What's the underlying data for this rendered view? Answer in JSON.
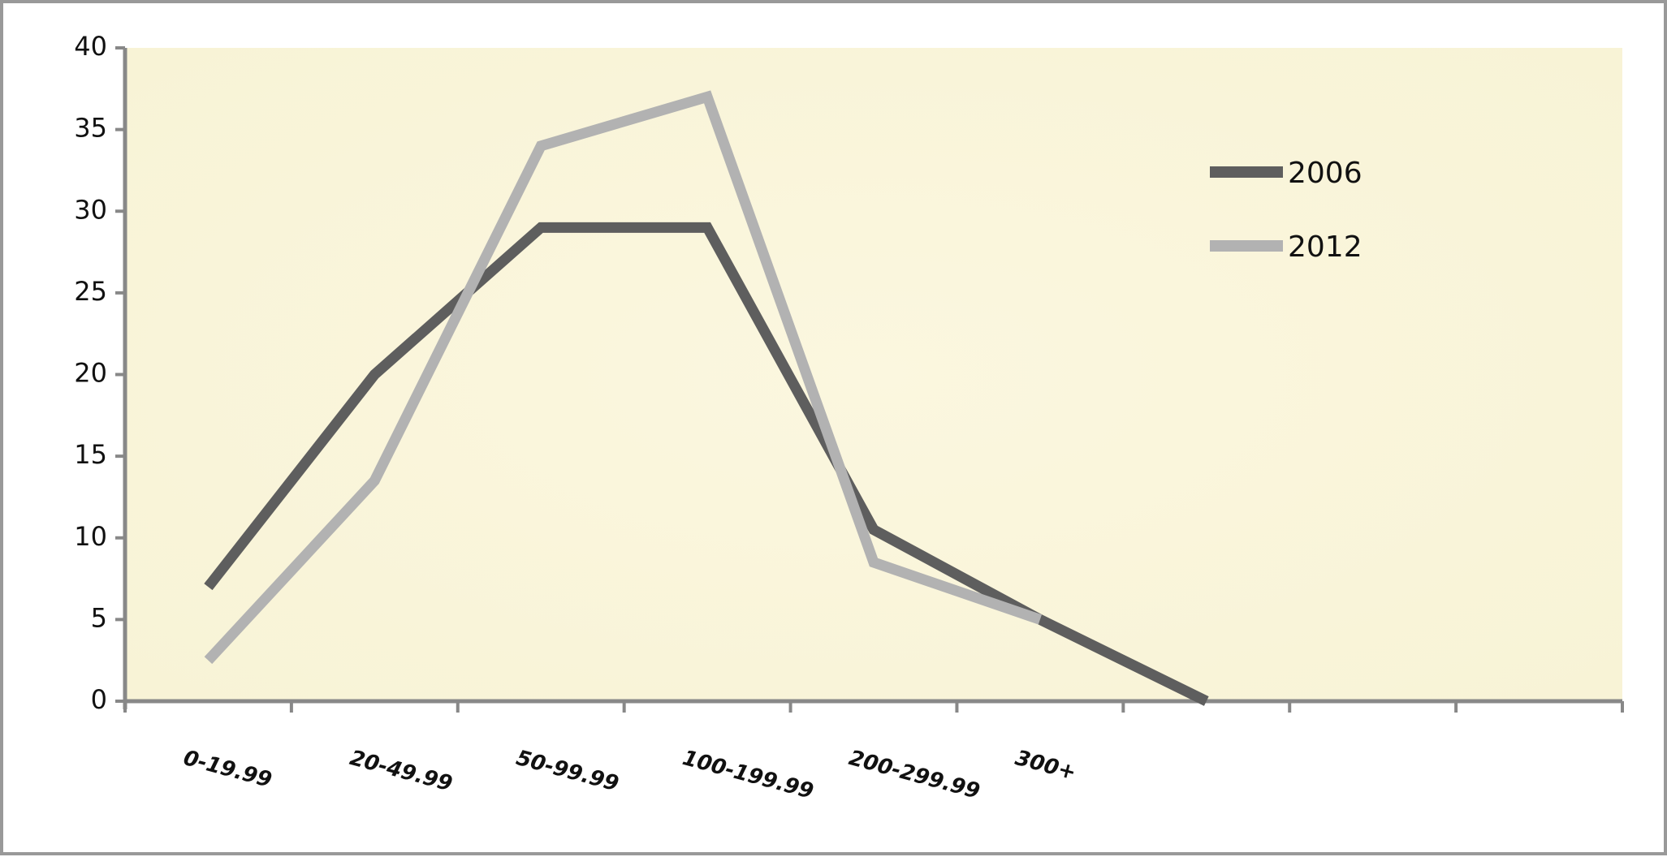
{
  "chart_data": {
    "type": "line",
    "categories": [
      "0-19.99",
      "20-49.99",
      "50-99.99",
      "100-199.99",
      "200-299.99",
      "300+",
      null,
      null,
      null
    ],
    "series": [
      {
        "name": "2006",
        "color": "#5e5e5e",
        "values": [
          7,
          20,
          29,
          29,
          10.5,
          5,
          0,
          null,
          null
        ]
      },
      {
        "name": "2012",
        "color": "#b2b2b2",
        "values": [
          2.5,
          13.5,
          34,
          37,
          8.5,
          5,
          null,
          null,
          null
        ]
      }
    ],
    "ylim": [
      0,
      40
    ],
    "yticks": [
      0,
      5,
      10,
      15,
      20,
      25,
      30,
      35,
      40
    ]
  }
}
